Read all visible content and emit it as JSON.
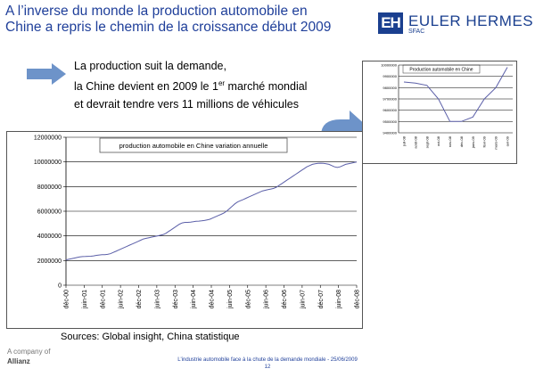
{
  "header": {
    "title_line1": "A l’inverse du monde la production automobile en",
    "title_line2": "Chine a repris le chemin de la croissance début 2009",
    "logo_mark": "EH",
    "logo_name": "EULER HERMES",
    "logo_sub": "SFAC"
  },
  "bullets": {
    "line1": "La production suit la demande,",
    "line2_pre": "la Chine devient en 2009 le 1",
    "line2_sup": "er",
    "line2_post": " marché mondial",
    "line3": "et devrait tendre vers 11 millions de véhicules"
  },
  "colors": {
    "title": "#1f3f9a",
    "logo": "#1a3f8f",
    "arrow": "#6d93c9",
    "line": "#5b5fa8"
  },
  "icons": {
    "right_arrow": "block-arrow-right-icon",
    "curved_arrow": "curved-arrow-up-right-icon"
  },
  "chart_data": [
    {
      "type": "line",
      "title": "production automobile en Chine variation annuelle",
      "xlabel": "",
      "ylabel": "",
      "ylim": [
        0,
        12000000
      ],
      "yticks": [
        0,
        2000000,
        4000000,
        6000000,
        8000000,
        10000000,
        12000000
      ],
      "ytick_labels": [
        "0",
        "2000000",
        "4000000",
        "6000000",
        "8000000",
        "10000000",
        "12000000"
      ],
      "categories": [
        "déc-00",
        "juin-01",
        "déc-01",
        "juin-02",
        "déc-02",
        "juin-03",
        "déc-03",
        "juin-04",
        "déc-04",
        "juin-05",
        "déc-05",
        "juin-06",
        "déc-06",
        "juin-07",
        "déc-07",
        "juin-08",
        "déc-08"
      ],
      "x": [
        0,
        1,
        2,
        3,
        4,
        5,
        6,
        7,
        8,
        9,
        10,
        11,
        12,
        13,
        14,
        15,
        16,
        17,
        18,
        19,
        20,
        21,
        22,
        23,
        24,
        25,
        26,
        27,
        28,
        29,
        30,
        31,
        32,
        33,
        34,
        35,
        36,
        37,
        38,
        39,
        40,
        41,
        42,
        43,
        44,
        45,
        46,
        47,
        48,
        49,
        50,
        51,
        52,
        53,
        54,
        55,
        56,
        57,
        58,
        59,
        60,
        61,
        62,
        63,
        64,
        65,
        66,
        67,
        68,
        69,
        70,
        71,
        72,
        73,
        74,
        75,
        76,
        77,
        78,
        79,
        80,
        81,
        82,
        83,
        84,
        85,
        86,
        87,
        88,
        89,
        90,
        91,
        92,
        93,
        94,
        95,
        96,
        97,
        98,
        99,
        100,
        101,
        102,
        103,
        104,
        105
      ],
      "series": [
        {
          "values": [
            2050000,
            2100000,
            2150000,
            2200000,
            2250000,
            2300000,
            2320000,
            2330000,
            2340000,
            2350000,
            2380000,
            2420000,
            2450000,
            2470000,
            2480000,
            2500000,
            2550000,
            2650000,
            2750000,
            2850000,
            2950000,
            3050000,
            3150000,
            3250000,
            3350000,
            3450000,
            3550000,
            3650000,
            3750000,
            3800000,
            3850000,
            3900000,
            3950000,
            4000000,
            4050000,
            4100000,
            4200000,
            4350000,
            4500000,
            4650000,
            4800000,
            4950000,
            5050000,
            5100000,
            5100000,
            5120000,
            5150000,
            5180000,
            5200000,
            5220000,
            5250000,
            5300000,
            5350000,
            5450000,
            5550000,
            5650000,
            5750000,
            5850000,
            6000000,
            6200000,
            6400000,
            6600000,
            6750000,
            6850000,
            6950000,
            7050000,
            7150000,
            7250000,
            7350000,
            7450000,
            7550000,
            7650000,
            7700000,
            7750000,
            7800000,
            7850000,
            7950000,
            8100000,
            8250000,
            8400000,
            8550000,
            8700000,
            8850000,
            9000000,
            9150000,
            9300000,
            9450000,
            9600000,
            9700000,
            9800000,
            9850000,
            9880000,
            9900000,
            9880000,
            9850000,
            9800000,
            9700000,
            9600000,
            9550000,
            9600000,
            9700000,
            9800000,
            9850000,
            9900000,
            9950000,
            10000000
          ]
        }
      ]
    },
    {
      "type": "line",
      "title": "Production automobile en Chine",
      "xlabel": "",
      "ylabel": "",
      "ylim": [
        9400000,
        10000000
      ],
      "yticks": [
        9400000,
        9500000,
        9600000,
        9700000,
        9800000,
        9900000,
        10000000
      ],
      "ytick_labels": [
        "9400000",
        "9500000",
        "9600000",
        "9700000",
        "9800000",
        "9900000",
        "10000000"
      ],
      "categories": [
        "juil-08",
        "août-08",
        "sept-08",
        "oct-08",
        "nov-08",
        "déc-08",
        "janv-09",
        "févr-09",
        "mars-09",
        "avr-09"
      ],
      "series": [
        {
          "values": [
            9850000,
            9840000,
            9820000,
            9700000,
            9500000,
            9500000,
            9540000,
            9700000,
            9800000,
            9980000
          ]
        }
      ]
    }
  ],
  "sources": "Sources: Global insight, China statistique",
  "company": {
    "line1": "A company of",
    "line2": "Allianz"
  },
  "footer": {
    "line1": "L'industrie automobile face à la chute de la demande mondiale - 25/06/2009",
    "page": "12"
  }
}
